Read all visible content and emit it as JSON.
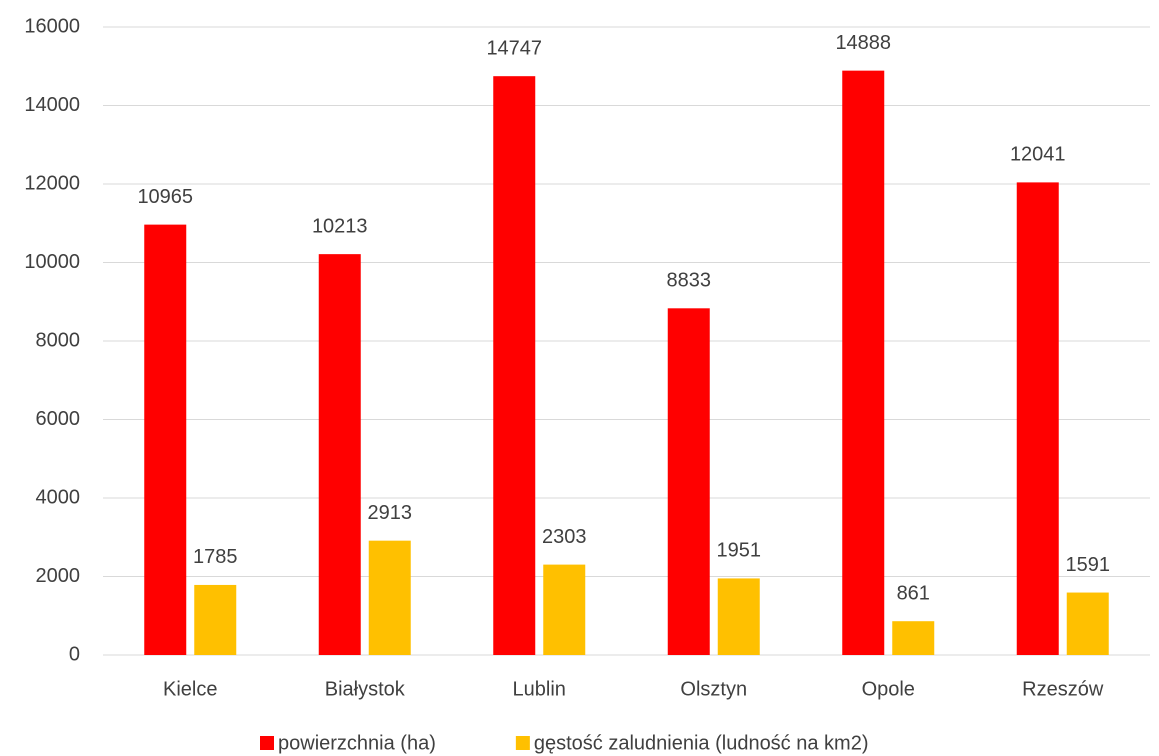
{
  "chart_data": {
    "type": "bar",
    "categories": [
      "Kielce",
      "Białystok",
      "Lublin",
      "Olsztyn",
      "Opole",
      "Rzeszów"
    ],
    "series": [
      {
        "name": "powierzchnia (ha)",
        "color": "#ff0000",
        "values": [
          10965,
          10213,
          14747,
          8833,
          14888,
          12041
        ]
      },
      {
        "name": "gęstość zaludnienia (ludność na km2)",
        "color": "#ffc000",
        "values": [
          1785,
          2913,
          2303,
          1951,
          861,
          1591
        ]
      }
    ],
    "ylim": [
      0,
      16000
    ],
    "yticks": [
      0,
      2000,
      4000,
      6000,
      8000,
      10000,
      12000,
      14000,
      16000
    ],
    "grid": true,
    "legend": "bottom"
  }
}
